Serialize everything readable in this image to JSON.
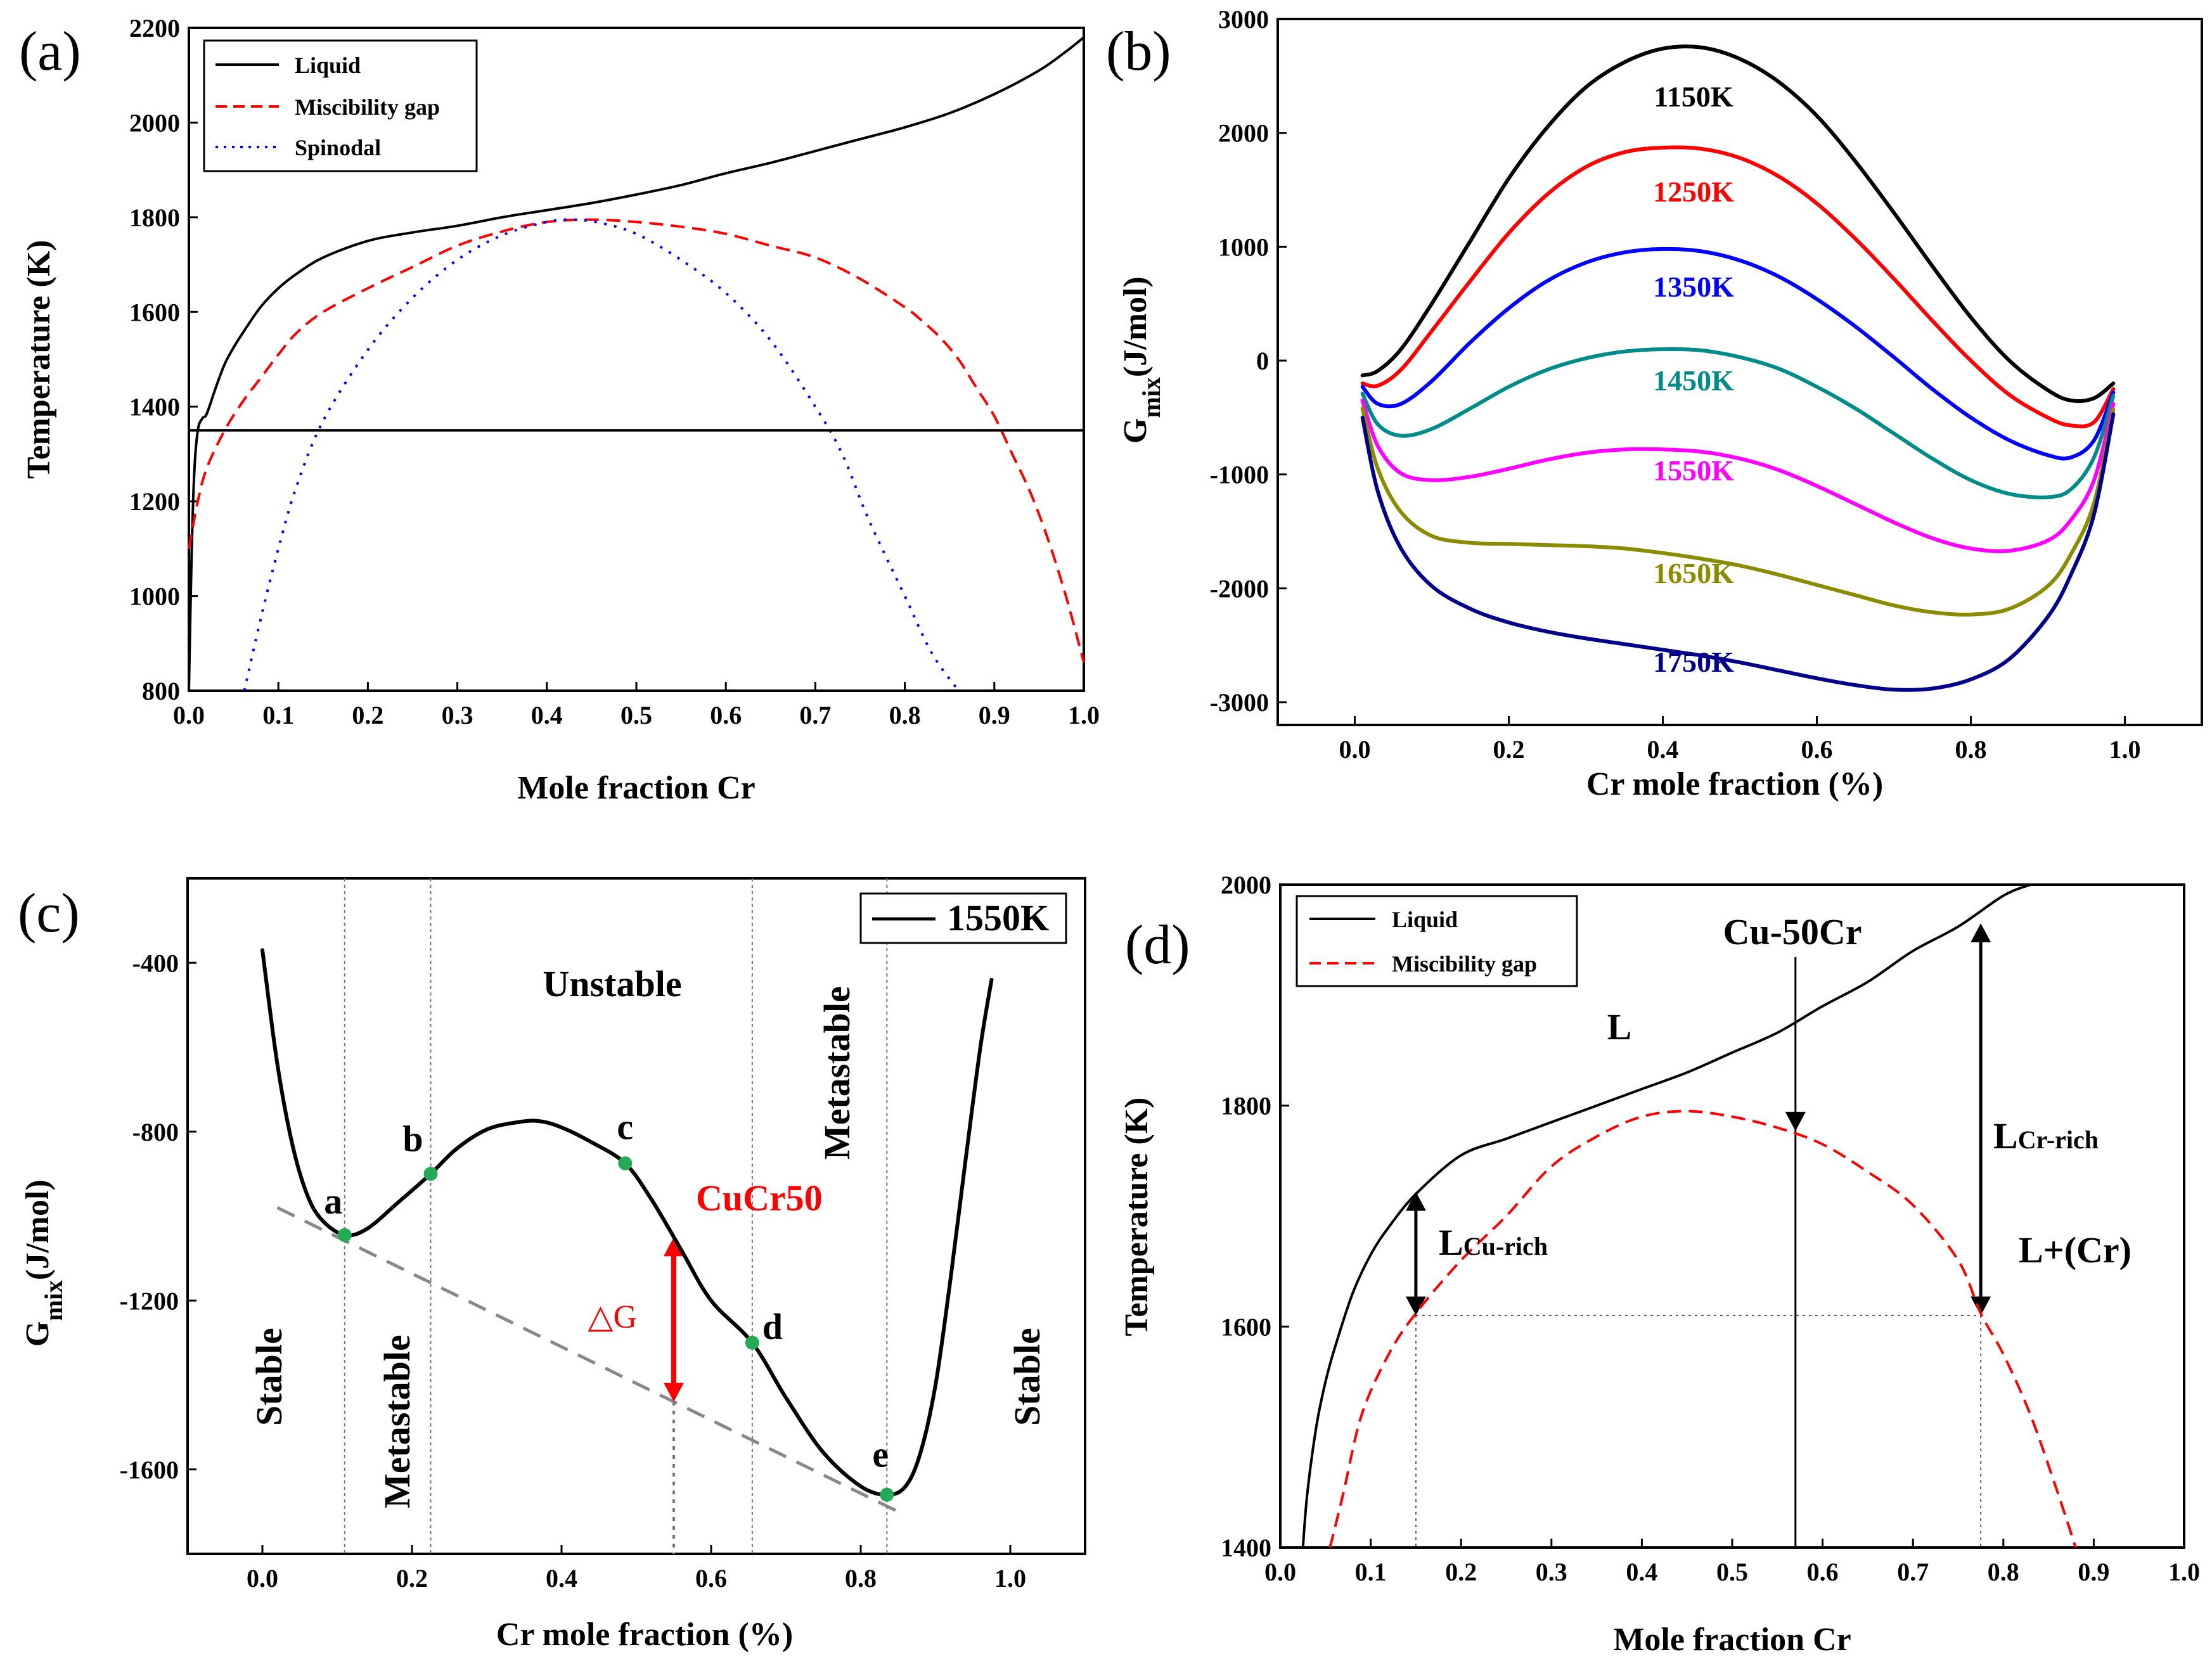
{
  "chart_data": [
    {
      "panel": "(a)",
      "type": "line",
      "xlabel": "Mole fraction Cr",
      "ylabel": "Temperature (K)",
      "xlim": [
        0.0,
        1.0
      ],
      "ylim": [
        800,
        2200
      ],
      "xticks": [
        0.0,
        0.1,
        0.2,
        0.3,
        0.4,
        0.5,
        0.6,
        0.7,
        0.8,
        0.9,
        1.0
      ],
      "yticks": [
        800,
        1000,
        1200,
        1400,
        1600,
        1800,
        2000,
        2200
      ],
      "legend": "top-left",
      "legend_labels": [
        "Liquid",
        "Miscibility gap",
        "Spinodal"
      ],
      "series": [
        {
          "name": "Liquid",
          "color": "#000000",
          "style": "solid",
          "x": [
            0.0,
            0.003,
            0.006,
            0.01,
            0.015,
            0.02,
            0.03,
            0.04,
            0.05,
            0.06,
            0.08,
            0.1,
            0.12,
            0.15,
            0.2,
            0.25,
            0.3,
            0.35,
            0.4,
            0.45,
            0.5,
            0.55,
            0.6,
            0.65,
            0.7,
            0.75,
            0.8,
            0.85,
            0.9,
            0.95,
            0.98,
            1.0
          ],
          "y": [
            800,
            1080,
            1260,
            1350,
            1375,
            1385,
            1440,
            1490,
            1525,
            1555,
            1610,
            1650,
            1680,
            1715,
            1750,
            1768,
            1782,
            1800,
            1815,
            1830,
            1848,
            1868,
            1893,
            1915,
            1940,
            1965,
            1990,
            2020,
            2060,
            2110,
            2150,
            2180
          ]
        },
        {
          "name": "Miscibility gap",
          "color": "#ff0000",
          "style": "dashed",
          "x": [
            0.0,
            0.01,
            0.02,
            0.04,
            0.06,
            0.08,
            0.1,
            0.12,
            0.15,
            0.2,
            0.25,
            0.3,
            0.35,
            0.4,
            0.45,
            0.5,
            0.55,
            0.6,
            0.65,
            0.7,
            0.75,
            0.8,
            0.82,
            0.84,
            0.86,
            0.88,
            0.9,
            0.92,
            0.94,
            0.96,
            0.98,
            1.0
          ],
          "y": [
            1100,
            1200,
            1270,
            1350,
            1410,
            1460,
            1510,
            1555,
            1600,
            1650,
            1695,
            1740,
            1770,
            1790,
            1795,
            1790,
            1780,
            1765,
            1740,
            1715,
            1670,
            1610,
            1580,
            1545,
            1500,
            1440,
            1380,
            1300,
            1220,
            1120,
            1000,
            860
          ]
        },
        {
          "name": "Spinodal",
          "color": "#0000ff",
          "style": "dotted",
          "x": [
            0.062,
            0.08,
            0.1,
            0.12,
            0.15,
            0.2,
            0.25,
            0.3,
            0.35,
            0.4,
            0.43,
            0.46,
            0.5,
            0.55,
            0.6,
            0.65,
            0.7,
            0.73,
            0.76,
            0.8,
            0.83,
            0.86
          ],
          "y": [
            800,
            950,
            1100,
            1230,
            1370,
            1520,
            1630,
            1710,
            1762,
            1790,
            1795,
            1788,
            1765,
            1710,
            1640,
            1540,
            1400,
            1300,
            1160,
            1000,
            880,
            800
          ]
        },
        {
          "name": "",
          "color": "#000000",
          "style": "solid",
          "x": [
            0.0,
            1.0
          ],
          "y": [
            1350,
            1350
          ]
        }
      ]
    },
    {
      "panel": "(b)",
      "type": "line",
      "xlabel": "Cr mole fraction (%)",
      "ylabel": "G",
      "ylabel_sub": "mix",
      "ylabel_rest": "(J/mol)",
      "xlim": [
        -0.1,
        1.1
      ],
      "ylim": [
        -3200,
        3000
      ],
      "xticks": [
        0.0,
        0.2,
        0.4,
        0.6,
        0.8,
        1.0
      ],
      "yticks": [
        -3000,
        -2000,
        -1000,
        0,
        1000,
        2000,
        3000
      ],
      "series": [
        {
          "name": "1150K",
          "color": "#000000",
          "x": [
            0.01,
            0.03,
            0.06,
            0.1,
            0.15,
            0.2,
            0.25,
            0.3,
            0.35,
            0.4,
            0.45,
            0.5,
            0.55,
            0.6,
            0.65,
            0.7,
            0.75,
            0.8,
            0.85,
            0.9,
            0.93,
            0.96,
            0.985
          ],
          "y": [
            -130,
            -90,
            100,
            500,
            1050,
            1600,
            2050,
            2400,
            2620,
            2740,
            2750,
            2650,
            2450,
            2150,
            1750,
            1300,
            830,
            380,
            0,
            -260,
            -350,
            -330,
            -200
          ]
        },
        {
          "name": "1250K",
          "color": "#ff0000",
          "x": [
            0.01,
            0.03,
            0.06,
            0.1,
            0.15,
            0.2,
            0.25,
            0.3,
            0.35,
            0.4,
            0.45,
            0.5,
            0.55,
            0.6,
            0.65,
            0.7,
            0.75,
            0.8,
            0.85,
            0.9,
            0.93,
            0.96,
            0.985
          ],
          "y": [
            -200,
            -220,
            -80,
            260,
            700,
            1120,
            1460,
            1700,
            1830,
            1870,
            1860,
            1780,
            1620,
            1380,
            1070,
            720,
            350,
            0,
            -300,
            -500,
            -570,
            -540,
            -250
          ]
        },
        {
          "name": "1350K",
          "color": "#0000ff",
          "x": [
            0.01,
            0.03,
            0.06,
            0.1,
            0.15,
            0.2,
            0.25,
            0.3,
            0.35,
            0.4,
            0.45,
            0.5,
            0.55,
            0.6,
            0.65,
            0.7,
            0.75,
            0.8,
            0.85,
            0.9,
            0.93,
            0.96,
            0.985
          ],
          "y": [
            -230,
            -380,
            -380,
            -180,
            160,
            460,
            700,
            860,
            950,
            980,
            960,
            880,
            740,
            540,
            300,
            30,
            -250,
            -500,
            -700,
            -830,
            -850,
            -700,
            -280
          ]
        },
        {
          "name": "1450K",
          "color": "#008b8b",
          "x": [
            0.01,
            0.03,
            0.06,
            0.1,
            0.15,
            0.2,
            0.25,
            0.3,
            0.35,
            0.4,
            0.45,
            0.5,
            0.55,
            0.6,
            0.65,
            0.7,
            0.75,
            0.8,
            0.85,
            0.9,
            0.93,
            0.96,
            0.985
          ],
          "y": [
            -290,
            -560,
            -660,
            -600,
            -420,
            -230,
            -80,
            20,
            80,
            100,
            90,
            30,
            -70,
            -230,
            -420,
            -640,
            -860,
            -1050,
            -1170,
            -1200,
            -1130,
            -850,
            -310
          ]
        },
        {
          "name": "1550K",
          "color": "#ff00ff",
          "x": [
            0.01,
            0.03,
            0.06,
            0.1,
            0.15,
            0.2,
            0.25,
            0.3,
            0.35,
            0.4,
            0.45,
            0.5,
            0.55,
            0.6,
            0.65,
            0.7,
            0.75,
            0.8,
            0.85,
            0.9,
            0.93,
            0.96,
            0.985
          ],
          "y": [
            -350,
            -750,
            -990,
            -1050,
            -1020,
            -950,
            -870,
            -810,
            -780,
            -780,
            -800,
            -860,
            -960,
            -1100,
            -1260,
            -1420,
            -1560,
            -1650,
            -1670,
            -1580,
            -1400,
            -1050,
            -380
          ]
        },
        {
          "name": "1650K",
          "color": "#8b8b00",
          "x": [
            0.01,
            0.03,
            0.06,
            0.1,
            0.15,
            0.2,
            0.25,
            0.3,
            0.35,
            0.4,
            0.45,
            0.5,
            0.55,
            0.6,
            0.65,
            0.7,
            0.75,
            0.8,
            0.85,
            0.9,
            0.93,
            0.96,
            0.985
          ],
          "y": [
            -420,
            -950,
            -1330,
            -1540,
            -1600,
            -1610,
            -1620,
            -1630,
            -1650,
            -1690,
            -1740,
            -1800,
            -1880,
            -1970,
            -2060,
            -2150,
            -2210,
            -2230,
            -2180,
            -1980,
            -1700,
            -1250,
            -430
          ]
        },
        {
          "name": "1750K",
          "color": "#00008b",
          "x": [
            0.01,
            0.03,
            0.06,
            0.1,
            0.15,
            0.2,
            0.25,
            0.3,
            0.35,
            0.4,
            0.45,
            0.5,
            0.55,
            0.6,
            0.65,
            0.7,
            0.75,
            0.8,
            0.85,
            0.9,
            0.93,
            0.96,
            0.985
          ],
          "y": [
            -500,
            -1150,
            -1650,
            -1980,
            -2180,
            -2300,
            -2380,
            -2440,
            -2490,
            -2540,
            -2590,
            -2650,
            -2720,
            -2790,
            -2850,
            -2890,
            -2880,
            -2800,
            -2620,
            -2250,
            -1880,
            -1350,
            -470
          ]
        }
      ]
    },
    {
      "panel": "(c)",
      "type": "line",
      "xlabel": "Cr mole fraction (%)",
      "ylabel": "G",
      "ylabel_sub": "mix",
      "ylabel_rest": "(J/mol)",
      "xlim": [
        -0.1,
        1.1
      ],
      "ylim": [
        -1800,
        -200
      ],
      "xticks": [
        0.0,
        0.2,
        0.4,
        0.6,
        0.8,
        1.0
      ],
      "yticks": [
        -400,
        -800,
        -1200,
        -1600
      ],
      "legend": "top-right",
      "legend_labels": [
        "1550K"
      ],
      "series": [
        {
          "name": "1550K",
          "color": "#000000",
          "x": [
            0.0,
            0.02,
            0.04,
            0.06,
            0.08,
            0.11,
            0.14,
            0.18,
            0.225,
            0.26,
            0.3,
            0.34,
            0.37,
            0.4,
            0.44,
            0.485,
            0.52,
            0.56,
            0.6,
            0.655,
            0.7,
            0.75,
            0.8,
            0.835,
            0.86,
            0.88,
            0.9,
            0.92,
            0.94,
            0.96,
            0.975
          ],
          "y": [
            -370,
            -640,
            -830,
            -950,
            -1010,
            -1045,
            -1030,
            -970,
            -900,
            -840,
            -795,
            -778,
            -775,
            -790,
            -825,
            -875,
            -960,
            -1080,
            -1200,
            -1300,
            -1430,
            -1560,
            -1640,
            -1660,
            -1640,
            -1560,
            -1400,
            -1150,
            -870,
            -600,
            -440
          ]
        }
      ],
      "points": [
        {
          "label": "a",
          "x": 0.11,
          "y": -1045
        },
        {
          "label": "b",
          "x": 0.225,
          "y": -900
        },
        {
          "label": "c",
          "x": 0.485,
          "y": -875
        },
        {
          "label": "d",
          "x": 0.655,
          "y": -1300
        },
        {
          "label": "e",
          "x": 0.835,
          "y": -1660
        }
      ],
      "tangent_line": {
        "x": [
          0.02,
          0.85
        ],
        "y": [
          -980,
          -1700
        ]
      },
      "vertical_guides": [
        0.11,
        0.225,
        0.655,
        0.835
      ],
      "alloy_line_x": 0.55,
      "region_labels": [
        "Stable",
        "Metastable",
        "Unstable",
        "Metastable",
        "Stable"
      ],
      "alloy_label": "CuCr50",
      "delta_label": "△G"
    },
    {
      "panel": "(d)",
      "type": "line",
      "xlabel": "Mole fraction Cr",
      "ylabel": "Temperature (K)",
      "xlim": [
        0.0,
        1.0
      ],
      "ylim": [
        1400,
        2000
      ],
      "xticks": [
        0.0,
        0.1,
        0.2,
        0.3,
        0.4,
        0.5,
        0.6,
        0.7,
        0.8,
        0.9,
        1.0
      ],
      "yticks": [
        1400,
        1600,
        1800,
        2000
      ],
      "legend": "top-left",
      "legend_labels": [
        "Liquid",
        "Miscibility gap"
      ],
      "series": [
        {
          "name": "Liquid",
          "color": "#000000",
          "style": "solid",
          "x": [
            0.025,
            0.03,
            0.04,
            0.05,
            0.06,
            0.08,
            0.1,
            0.12,
            0.15,
            0.2,
            0.25,
            0.3,
            0.35,
            0.4,
            0.45,
            0.5,
            0.55,
            0.6,
            0.65,
            0.7,
            0.75,
            0.8,
            0.83
          ],
          "y": [
            1400,
            1450,
            1510,
            1550,
            1580,
            1630,
            1665,
            1690,
            1720,
            1755,
            1770,
            1785,
            1800,
            1815,
            1830,
            1848,
            1866,
            1890,
            1912,
            1940,
            1962,
            1990,
            2000
          ]
        },
        {
          "name": "Miscibility gap",
          "color": "#ff0000",
          "style": "dashed",
          "x": [
            0.055,
            0.07,
            0.09,
            0.12,
            0.15,
            0.2,
            0.25,
            0.3,
            0.35,
            0.4,
            0.45,
            0.5,
            0.55,
            0.6,
            0.65,
            0.7,
            0.75,
            0.775,
            0.8,
            0.83,
            0.86,
            0.88
          ],
          "y": [
            1400,
            1450,
            1520,
            1575,
            1612,
            1660,
            1700,
            1745,
            1772,
            1790,
            1795,
            1790,
            1780,
            1765,
            1740,
            1710,
            1660,
            1612,
            1575,
            1520,
            1450,
            1400
          ]
        }
      ],
      "guides": {
        "y": 1610,
        "x_left": 0.15,
        "x_right": 0.775,
        "alloy_x": 0.57
      },
      "annotations": {
        "phase_L": "L",
        "alloy": "Cu-50Cr",
        "cr_rich": "L",
        "cr_rich_sub": "Cr-rich",
        "cu_rich": "L",
        "cu_rich_sub": "Cu-rich",
        "two_phase": "L+(Cr)"
      }
    }
  ],
  "panel_labels": [
    "(a)",
    "(b)",
    "(c)",
    "(d)"
  ]
}
